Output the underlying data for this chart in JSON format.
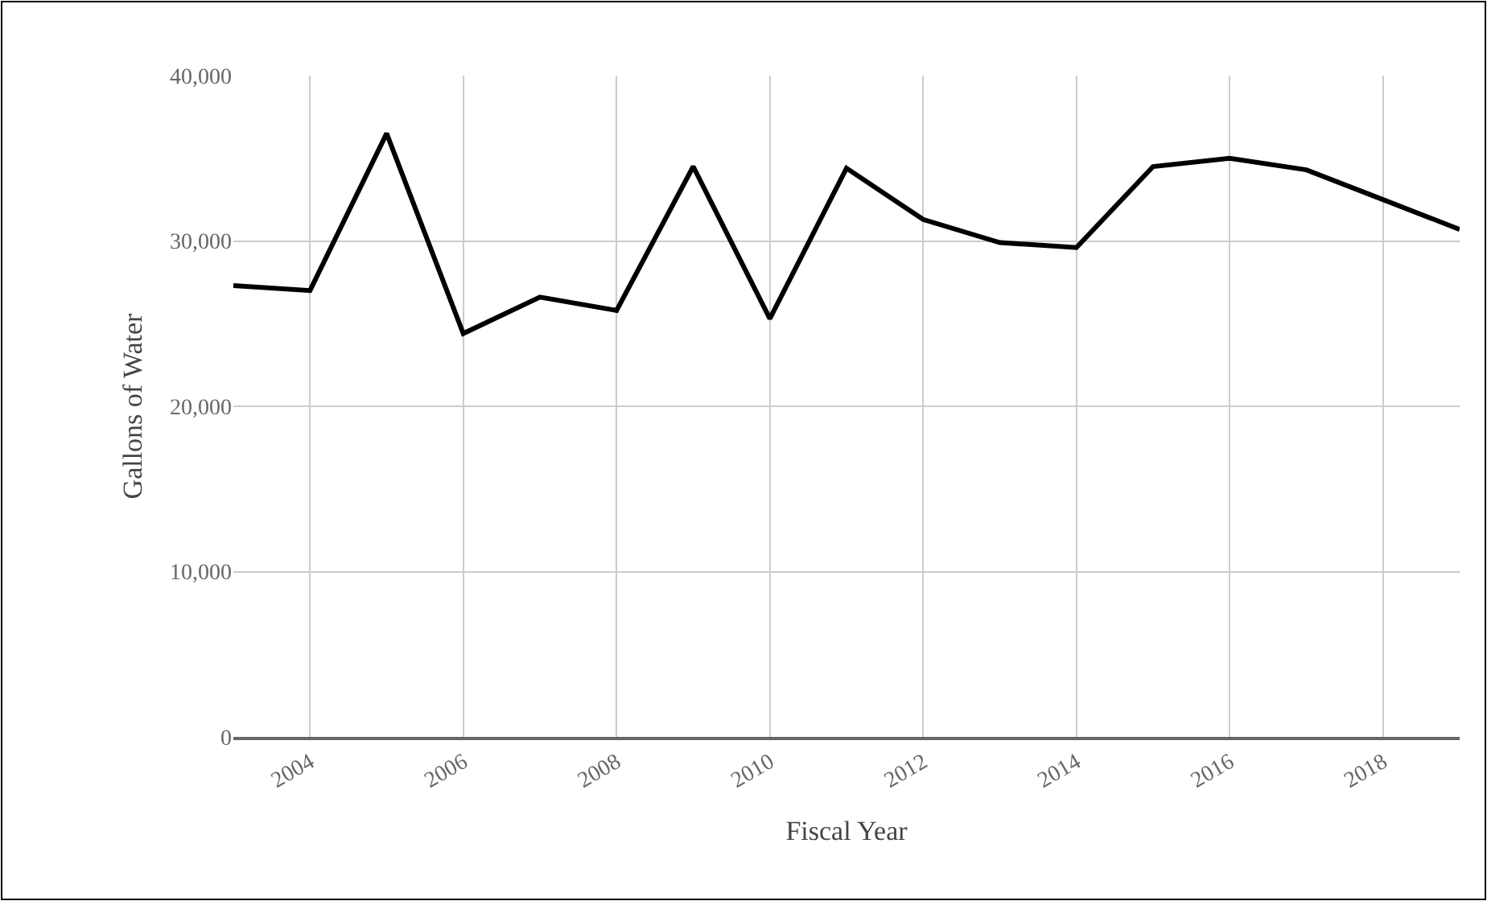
{
  "chart_data": {
    "type": "line",
    "xlabel": "Fiscal Year",
    "ylabel": "Gallons of Water",
    "x": [
      2003,
      2004,
      2005,
      2006,
      2007,
      2008,
      2009,
      2010,
      2011,
      2012,
      2013,
      2014,
      2015,
      2016,
      2017,
      2018,
      2019
    ],
    "series": [
      {
        "color": "#000000",
        "values": [
          27300,
          27000,
          36500,
          24400,
          26600,
          25800,
          34500,
          25300,
          34400,
          31300,
          29900,
          29600,
          34500,
          35000,
          34300,
          32500,
          30700
        ]
      }
    ],
    "xlim": [
      2003,
      2019
    ],
    "xticks": [
      2004,
      2006,
      2008,
      2010,
      2012,
      2014,
      2016,
      2018
    ],
    "ylim": [
      0,
      40000
    ],
    "yticks": [
      {
        "value": 0,
        "label": "0"
      },
      {
        "value": 10000,
        "label": "10,000"
      },
      {
        "value": 20000,
        "label": "20,000"
      },
      {
        "value": 30000,
        "label": "30,000"
      },
      {
        "value": 40000,
        "label": "40,000"
      }
    ],
    "grid": true,
    "marker": "none",
    "line_style": "solid"
  }
}
